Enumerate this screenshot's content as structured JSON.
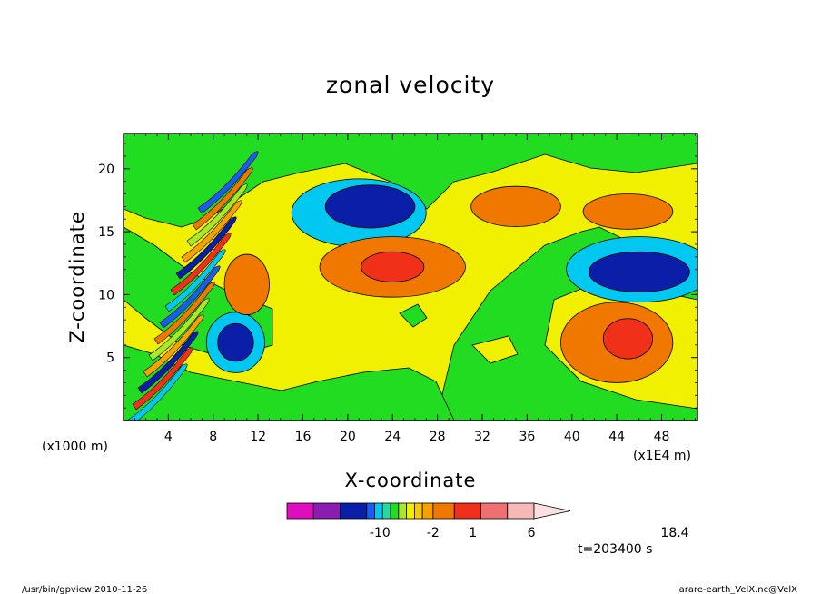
{
  "footer": {
    "left": "/usr/bin/gpview   2010-11-26",
    "right": "arare-earth_VelX.nc@VelX"
  },
  "time_label": "t=203400 s",
  "colors": {
    "background": "#ffffff",
    "levels": [
      "#e00cc0",
      "#8a1cb0",
      "#0a1ea8",
      "#1a5cf0",
      "#00c8f0",
      "#28d8a0",
      "#22dc22",
      "#a8e828",
      "#f0f000",
      "#f8c800",
      "#f8a000",
      "#f07800",
      "#f03018",
      "#ee7070",
      "#f8b8b8",
      "#fce0e0"
    ]
  },
  "chart_data": {
    "type": "heatmap",
    "title": "zonal velocity",
    "xlabel": "X-coordinate",
    "ylabel": "Z-coordinate",
    "x_unit": "(x1E4 m)",
    "y_unit": "(x1000 m)",
    "xlim": [
      0,
      51.2
    ],
    "ylim": [
      0,
      22.8
    ],
    "x_ticks": [
      "4",
      "8",
      "12",
      "16",
      "20",
      "24",
      "28",
      "32",
      "36",
      "40",
      "44",
      "48"
    ],
    "x_tick_values": [
      4,
      8,
      12,
      16,
      20,
      24,
      28,
      32,
      36,
      40,
      44,
      48
    ],
    "y_ticks": [
      "5",
      "10",
      "15",
      "20"
    ],
    "y_tick_values": [
      5,
      10,
      15,
      20
    ],
    "colorbar": {
      "labels": [
        "-10",
        "-2",
        "1",
        "6",
        "18.4"
      ],
      "label_positions": [
        3.5,
        5.5,
        7.0,
        9.2,
        14.6
      ],
      "segment_widths": [
        1,
        1,
        1,
        0.3,
        0.3,
        0.3,
        0.3,
        0.3,
        0.3,
        0.3,
        0.4,
        0.8,
        1,
        1,
        1
      ]
    },
    "features": [
      {
        "x": 22,
        "z": 17.0,
        "level": 2,
        "rx": 4.0,
        "rz": 1.7
      },
      {
        "x": 21,
        "z": 16.5,
        "level": 4,
        "rx": 6.0,
        "rz": 2.7
      },
      {
        "x": 46,
        "z": 11.8,
        "level": 2,
        "rx": 4.5,
        "rz": 1.6
      },
      {
        "x": 46,
        "z": 12.0,
        "level": 4,
        "rx": 6.5,
        "rz": 2.6
      },
      {
        "x": 10,
        "z": 6.2,
        "level": 2,
        "rx": 1.6,
        "rz": 1.5
      },
      {
        "x": 10,
        "z": 6.2,
        "level": 4,
        "rx": 2.6,
        "rz": 2.4
      },
      {
        "x": 24,
        "z": 12.2,
        "level": 11,
        "rx": 6.5,
        "rz": 2.4
      },
      {
        "x": 24,
        "z": 12.2,
        "level": 12,
        "rx": 2.8,
        "rz": 1.2
      },
      {
        "x": 44,
        "z": 6.2,
        "level": 11,
        "rx": 5.0,
        "rz": 3.2
      },
      {
        "x": 45,
        "z": 6.5,
        "level": 12,
        "rx": 2.2,
        "rz": 1.6
      },
      {
        "x": 35,
        "z": 17.0,
        "level": 11,
        "rx": 4.0,
        "rz": 1.6
      },
      {
        "x": 45,
        "z": 16.6,
        "level": 11,
        "rx": 4.0,
        "rz": 1.4
      },
      {
        "x": 11,
        "z": 10.8,
        "level": 11,
        "rx": 2.0,
        "rz": 2.4
      }
    ]
  }
}
